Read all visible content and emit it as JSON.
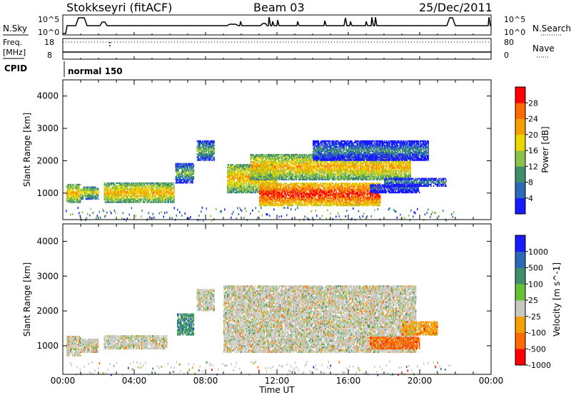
{
  "header": {
    "station": "Stokkseyri (fitACF)",
    "beam": "Beam 03",
    "date": "25/Dec/2011"
  },
  "side_labels": {
    "nsky": "N.Sky",
    "nsearch": "N.Search",
    "freq": "Freq.",
    "mhz": "[MHz]",
    "nave": "Nave",
    "cpid": "CPID",
    "cpid_value": "normal 150"
  },
  "noise_ticks": {
    "top": "10^5",
    "bottom": "10^0"
  },
  "freq_ticks": {
    "left_top": "18",
    "left_bottom": "8",
    "right_top": "80",
    "right_bottom": "0"
  },
  "chart_data": [
    {
      "type": "heatmap",
      "name": "power",
      "xlabel": "Time UT",
      "ylabel": "Slant Range [km]",
      "xlim": [
        0,
        24
      ],
      "ylim": [
        180,
        4500
      ],
      "x_ticks": [
        "00:00",
        "04:00",
        "08:00",
        "12:00",
        "16:00",
        "20:00",
        "00:00"
      ],
      "y_ticks": [
        1000,
        2000,
        3000,
        4000
      ],
      "colorbar": {
        "label": "Power [dB]",
        "ticks": [
          "4",
          "8",
          "12",
          "16",
          "20",
          "24",
          "28"
        ],
        "colors": [
          "#1a1aff",
          "#2a6ab8",
          "#3d8f6a",
          "#8bc34a",
          "#e8d800",
          "#f5a000",
          "#ff6a00",
          "#ff0000"
        ]
      },
      "regions": [
        {
          "t0": 0.2,
          "t1": 1.0,
          "r0": 700,
          "r1": 1250,
          "level": 5
        },
        {
          "t0": 1.0,
          "t1": 2.0,
          "r0": 800,
          "r1": 1200,
          "level": 4
        },
        {
          "t0": 2.3,
          "t1": 6.2,
          "r0": 700,
          "r1": 1300,
          "level": 5
        },
        {
          "t0": 6.3,
          "t1": 7.3,
          "r0": 1300,
          "r1": 1900,
          "level": 3
        },
        {
          "t0": 7.5,
          "t1": 8.5,
          "r0": 2000,
          "r1": 2600,
          "level": 3
        },
        {
          "t0": 9.2,
          "t1": 12.0,
          "r0": 1000,
          "r1": 1900,
          "level": 5
        },
        {
          "t0": 11.0,
          "t1": 17.8,
          "r0": 600,
          "r1": 1300,
          "level": 7
        },
        {
          "t0": 10.5,
          "t1": 19.5,
          "r0": 1400,
          "r1": 2200,
          "level": 5
        },
        {
          "t0": 14.0,
          "t1": 20.5,
          "r0": 2000,
          "r1": 2600,
          "level": 2
        },
        {
          "t0": 17.2,
          "t1": 20.0,
          "r0": 1000,
          "r1": 1250,
          "level": 1
        },
        {
          "t0": 18.0,
          "t1": 21.5,
          "r0": 1200,
          "r1": 1450,
          "level": 2
        }
      ]
    },
    {
      "type": "heatmap",
      "name": "velocity",
      "xlabel": "Time UT",
      "ylabel": "Slant Range [km]",
      "xlim": [
        0,
        24
      ],
      "ylim": [
        180,
        4500
      ],
      "x_ticks": [
        "00:00",
        "04:00",
        "08:00",
        "12:00",
        "16:00",
        "20:00",
        "00:00"
      ],
      "y_ticks": [
        1000,
        2000,
        3000,
        4000
      ],
      "colorbar": {
        "label": "Velocity [m s^-1]",
        "ticks": [
          "1000",
          "500",
          "100",
          "25",
          "-25",
          "-100",
          "-500",
          "-1000"
        ],
        "colors": [
          "#1a1aff",
          "#2a6ab8",
          "#3d8f6a",
          "#66c233",
          "#c8c8c0",
          "#f5a000",
          "#ff6a00",
          "#ff0000"
        ]
      },
      "regions": [
        {
          "t0": 0.2,
          "t1": 1.0,
          "r0": 700,
          "r1": 1250,
          "level": 4
        },
        {
          "t0": 1.0,
          "t1": 2.0,
          "r0": 800,
          "r1": 1200,
          "level": 4
        },
        {
          "t0": 2.3,
          "t1": 5.8,
          "r0": 900,
          "r1": 1300,
          "level": 4
        },
        {
          "t0": 6.4,
          "t1": 7.3,
          "r0": 1300,
          "r1": 1900,
          "level": 2
        },
        {
          "t0": 7.5,
          "t1": 8.5,
          "r0": 2000,
          "r1": 2600,
          "level": 4
        },
        {
          "t0": 9.0,
          "t1": 19.8,
          "r0": 800,
          "r1": 2700,
          "level": 4
        },
        {
          "t0": 17.2,
          "t1": 20.0,
          "r0": 900,
          "r1": 1250,
          "level": 6
        },
        {
          "t0": 19.0,
          "t1": 21.0,
          "r0": 1300,
          "r1": 1700,
          "level": 5
        }
      ]
    }
  ]
}
